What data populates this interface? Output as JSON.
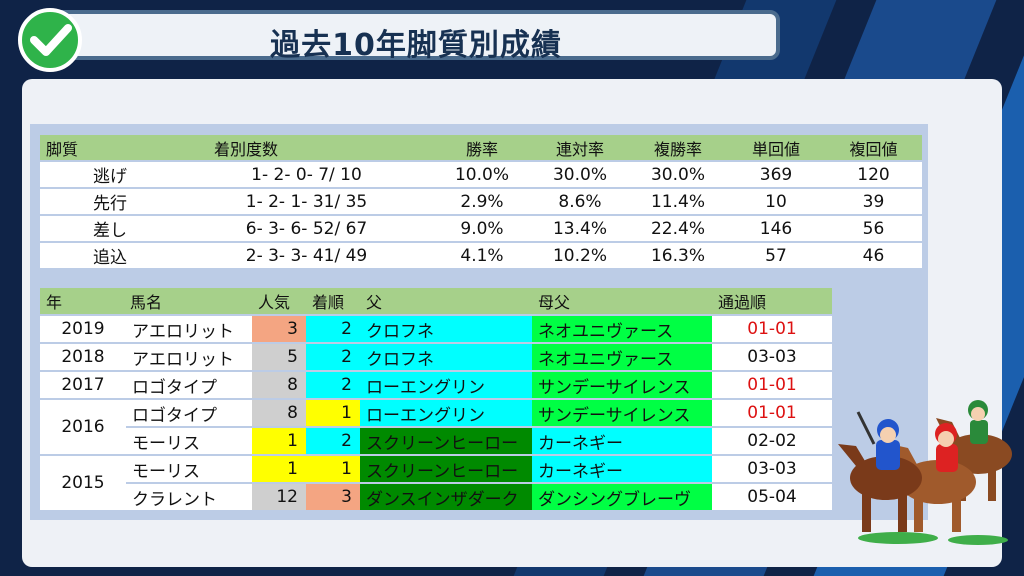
{
  "title": "過去10年脚質別成績",
  "stats": {
    "headers": [
      "脚質",
      "着別度数",
      "勝率",
      "連対率",
      "複勝率",
      "単回値",
      "複回値"
    ],
    "rows": [
      {
        "style": "逃げ",
        "record": "1- 2- 0- 7/ 10",
        "win": "10.0%",
        "quinella": "30.0%",
        "show": "30.0%",
        "win_ret": "369",
        "show_ret": "120"
      },
      {
        "style": "先行",
        "record": "1- 2- 1- 31/ 35",
        "win": "2.9%",
        "quinella": "8.6%",
        "show": "11.4%",
        "win_ret": "10",
        "show_ret": "39"
      },
      {
        "style": "差し",
        "record": "6- 3- 6- 52/ 67",
        "win": "9.0%",
        "quinella": "13.4%",
        "show": "22.4%",
        "win_ret": "146",
        "show_ret": "56"
      },
      {
        "style": "追込",
        "record": "2- 3- 3- 41/ 49",
        "win": "4.1%",
        "quinella": "10.2%",
        "show": "16.3%",
        "win_ret": "57",
        "show_ret": "46"
      }
    ]
  },
  "results": {
    "headers": [
      "年",
      "馬名",
      "人気",
      "着順",
      "父",
      "母父",
      "通過順"
    ],
    "rows": [
      {
        "year": "2019",
        "horse": "アエロリット",
        "pop": "3",
        "finish": "2",
        "sire": "クロフネ",
        "dam_sire": "ネオユニヴァース",
        "passing": "01-01"
      },
      {
        "year": "2018",
        "horse": "アエロリット",
        "pop": "5",
        "finish": "2",
        "sire": "クロフネ",
        "dam_sire": "ネオユニヴァース",
        "passing": "03-03"
      },
      {
        "year": "2017",
        "horse": "ロゴタイプ",
        "pop": "8",
        "finish": "2",
        "sire": "ローエングリン",
        "dam_sire": "サンデーサイレンス",
        "passing": "01-01"
      },
      {
        "year": "2016",
        "horse": "ロゴタイプ",
        "pop": "8",
        "finish": "1",
        "sire": "ローエングリン",
        "dam_sire": "サンデーサイレンス",
        "passing": "01-01"
      },
      {
        "year": "",
        "horse": "モーリス",
        "pop": "1",
        "finish": "2",
        "sire": "スクリーンヒーロー",
        "dam_sire": "カーネギー",
        "passing": "02-02"
      },
      {
        "year": "2015",
        "horse": "モーリス",
        "pop": "1",
        "finish": "1",
        "sire": "スクリーンヒーロー",
        "dam_sire": "カーネギー",
        "passing": "03-03"
      },
      {
        "year": "",
        "horse": "クラレント",
        "pop": "12",
        "finish": "3",
        "sire": "ダンスインザダーク",
        "dam_sire": "ダンシングブレーヴ",
        "passing": "05-04"
      }
    ]
  },
  "colors": {
    "header_green": "#a6d08a",
    "cyan": "#00ffff",
    "bright_green": "#00ff44",
    "dark_green": "#008a00",
    "yellow": "#ffff00",
    "salmon": "#f4a582",
    "gray": "#cfcfcf",
    "passing_red": "#dd1111",
    "check_green": "#2fb34a"
  },
  "icons": {
    "title_icon": "checkmark-icon",
    "illustration": "jockeys-on-horses-illustration"
  }
}
